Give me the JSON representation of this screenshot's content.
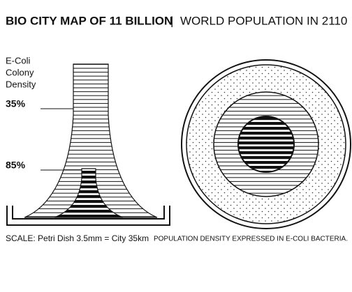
{
  "header": {
    "title": "BIO CITY MAP OF 11 BILLION",
    "separator": "|",
    "subtitle": "WORLD POPULATION IN 2110"
  },
  "left_panel": {
    "legend_lines": [
      "E-Coli",
      "Colony",
      "Density"
    ],
    "upper_label": "35%",
    "lower_label": "85%",
    "scale": "SCALE: Petri Dish 3.5mm = City 35km"
  },
  "right_panel": {
    "caption": "POPULATION DENSITY EXPRESSED IN E-COLI BACTERIA."
  }
}
